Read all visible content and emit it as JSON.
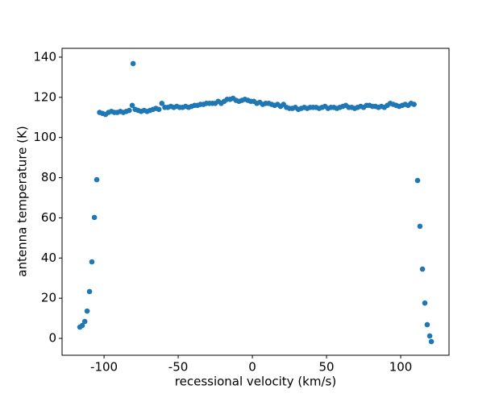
{
  "chart_data": {
    "type": "scatter",
    "x_label": "recessional velocity (km/s)",
    "y_label": "antenna temperature (K)",
    "color": "#1f77b4",
    "xlim": [
      -128.3,
      132.6
    ],
    "ylim": [
      -8.4,
      144.4
    ],
    "xticks": [
      -100,
      -50,
      0,
      50,
      100
    ],
    "yticks": [
      0,
      20,
      40,
      60,
      80,
      100,
      120,
      140
    ],
    "x": [
      -116.3,
      -114.7,
      -113.0,
      -111.4,
      -109.8,
      -108.2,
      -106.5,
      -104.9,
      -103,
      -101,
      -99,
      -97,
      -95,
      -93,
      -91,
      -89,
      -87,
      -85,
      -83,
      -81,
      -79,
      -77,
      -75,
      -73,
      -71,
      -69,
      -67,
      -65,
      -63,
      -61,
      -59,
      -57,
      -55,
      -53,
      -51,
      -49,
      -47,
      -45,
      -43,
      -41,
      -39,
      -37,
      -35,
      -33,
      -31,
      -29,
      -27,
      -25,
      -23,
      -21,
      -19,
      -17,
      -15,
      -13,
      -11,
      -9,
      -7,
      -5,
      -3,
      -1,
      1,
      3,
      5,
      7,
      9,
      11,
      13,
      15,
      17,
      19,
      21,
      23,
      25,
      27,
      29,
      31,
      33,
      35,
      37,
      39,
      41,
      43,
      45,
      47,
      49,
      51,
      53,
      55,
      57,
      59,
      61,
      63,
      65,
      67,
      69,
      71,
      73,
      75,
      77,
      79,
      81,
      83,
      85,
      87,
      89,
      91,
      93,
      95,
      97,
      99,
      101,
      103,
      105,
      107,
      109,
      -80.4,
      111.4,
      113.0,
      114.7,
      116.3,
      117.9,
      119.6,
      120.7
    ],
    "values": [
      5.6,
      6.4,
      8.4,
      13.6,
      23.3,
      38.1,
      60.2,
      79.0,
      112.5,
      112,
      111.5,
      112.5,
      113,
      112.5,
      112.5,
      113,
      112.5,
      113,
      113.5,
      116,
      114,
      113.5,
      113,
      113.5,
      113,
      113.5,
      114,
      114.5,
      114,
      117,
      115,
      115,
      115.5,
      115,
      115.5,
      115,
      115,
      115.5,
      115,
      115.5,
      116,
      116,
      116.5,
      116.5,
      117,
      117,
      117,
      117,
      118,
      117,
      118,
      119,
      119,
      119.5,
      118.5,
      118,
      118.5,
      119,
      118.5,
      118,
      118,
      117,
      117.5,
      116.5,
      117,
      117,
      116.5,
      116,
      116.5,
      115.5,
      116.5,
      115,
      114.5,
      114.5,
      115,
      114,
      114.5,
      115,
      114.5,
      115,
      115,
      115,
      114.5,
      115,
      115.5,
      114.5,
      115,
      115,
      114.5,
      115,
      115.5,
      116,
      115,
      115,
      114.5,
      115,
      115.5,
      115,
      116,
      116,
      115.5,
      115.5,
      115,
      115.5,
      115,
      116,
      117,
      116.5,
      116,
      115.5,
      116,
      116.5,
      116,
      117,
      116.5,
      136.8,
      78.6,
      55.8,
      34.5,
      17.6,
      6.8,
      1.2,
      -1.6
    ]
  }
}
